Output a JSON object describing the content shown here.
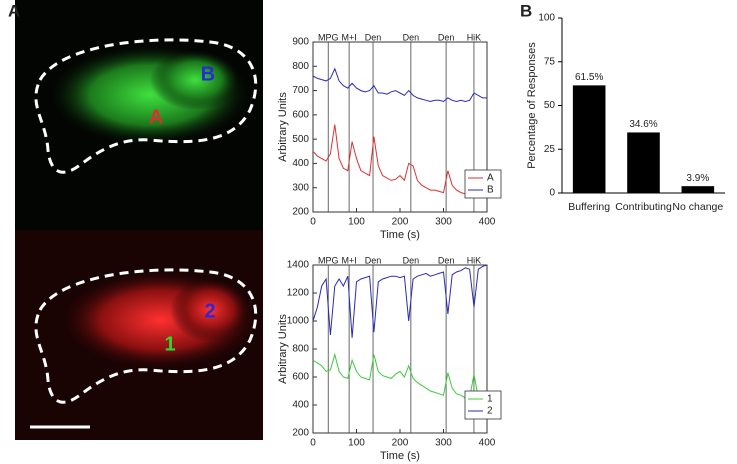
{
  "panel_labels": [
    "A",
    "B"
  ],
  "images": [
    {
      "labels": [
        "B",
        "A"
      ]
    },
    {
      "labels": [
        "2",
        "1"
      ]
    }
  ],
  "chart_data": [
    {
      "type": "line",
      "ylabel": "Arbitrary Units",
      "xlabel": "Time (s)",
      "xlim": [
        0,
        400
      ],
      "xticks": [
        0,
        100,
        200,
        300,
        400
      ],
      "ylim": [
        200,
        900
      ],
      "yticks": [
        200,
        300,
        400,
        500,
        600,
        700,
        800,
        900
      ],
      "events": [
        {
          "x": 35,
          "label": "MPG"
        },
        {
          "x": 83,
          "label": "M+I"
        },
        {
          "x": 138,
          "label": "Den"
        },
        {
          "x": 225,
          "label": "Den"
        },
        {
          "x": 306,
          "label": "Den"
        },
        {
          "x": 370,
          "label": "HiK"
        }
      ],
      "x": [
        0,
        10,
        20,
        30,
        40,
        50,
        60,
        70,
        80,
        90,
        100,
        110,
        120,
        130,
        140,
        150,
        160,
        170,
        180,
        190,
        200,
        210,
        220,
        230,
        240,
        250,
        260,
        270,
        280,
        290,
        300,
        310,
        320,
        330,
        340,
        350,
        360,
        370,
        380,
        390,
        400
      ],
      "series": [
        {
          "name": "A",
          "color": "#e03030",
          "values": [
            450,
            430,
            420,
            410,
            440,
            560,
            420,
            380,
            370,
            490,
            420,
            370,
            360,
            350,
            510,
            390,
            350,
            340,
            330,
            335,
            350,
            330,
            400,
            390,
            330,
            310,
            300,
            290,
            290,
            285,
            280,
            370,
            310,
            290,
            280,
            275,
            280,
            340,
            290,
            270,
            265
          ]
        },
        {
          "name": "B",
          "color": "#2a2ab8",
          "values": [
            760,
            750,
            745,
            740,
            750,
            790,
            740,
            720,
            710,
            730,
            710,
            700,
            695,
            700,
            720,
            690,
            690,
            685,
            695,
            700,
            690,
            680,
            700,
            680,
            670,
            665,
            660,
            655,
            660,
            660,
            655,
            670,
            660,
            655,
            660,
            655,
            660,
            690,
            680,
            670,
            670
          ]
        }
      ]
    },
    {
      "type": "line",
      "ylabel": "Arbitrary Units",
      "xlabel": "Time (s)",
      "xlim": [
        0,
        400
      ],
      "xticks": [
        0,
        100,
        200,
        300,
        400
      ],
      "ylim": [
        200,
        1400
      ],
      "yticks": [
        200,
        400,
        600,
        800,
        1000,
        1200,
        1400
      ],
      "events": [
        {
          "x": 35,
          "label": "MPG"
        },
        {
          "x": 83,
          "label": "M+I"
        },
        {
          "x": 138,
          "label": "Den"
        },
        {
          "x": 225,
          "label": "Den"
        },
        {
          "x": 306,
          "label": "Den"
        },
        {
          "x": 370,
          "label": "HiK"
        }
      ],
      "x": [
        0,
        10,
        20,
        30,
        40,
        50,
        60,
        70,
        80,
        90,
        100,
        110,
        120,
        130,
        140,
        150,
        160,
        170,
        180,
        190,
        200,
        210,
        220,
        230,
        240,
        250,
        260,
        270,
        280,
        290,
        300,
        310,
        320,
        330,
        340,
        350,
        360,
        370,
        380,
        390,
        400
      ],
      "series": [
        {
          "name": "1",
          "color": "#3ccc3c",
          "values": [
            720,
            700,
            680,
            640,
            650,
            760,
            640,
            600,
            590,
            720,
            640,
            600,
            590,
            580,
            760,
            640,
            610,
            600,
            590,
            620,
            640,
            600,
            680,
            590,
            560,
            540,
            520,
            500,
            490,
            480,
            470,
            630,
            520,
            480,
            470,
            450,
            450,
            620,
            450,
            430,
            420
          ]
        },
        {
          "name": "2",
          "color": "#2a2ab8",
          "values": [
            1000,
            1100,
            1250,
            1300,
            900,
            1250,
            1300,
            1250,
            1320,
            880,
            1280,
            1300,
            1310,
            1320,
            920,
            1280,
            1300,
            1310,
            1320,
            1320,
            1310,
            1320,
            1000,
            1300,
            1320,
            1330,
            1340,
            1320,
            1330,
            1340,
            1350,
            1050,
            1330,
            1350,
            1360,
            1380,
            1370,
            1100,
            1370,
            1390,
            1400
          ]
        }
      ]
    },
    {
      "type": "bar",
      "ylabel": "Percentage of Responses",
      "categories": [
        "Buffering",
        "Contributing",
        "No change"
      ],
      "values": [
        61.5,
        34.6,
        3.9
      ],
      "value_labels": [
        "61.5%",
        "34.6%",
        "3.9%"
      ],
      "color": "#000000",
      "ylim": [
        0,
        100
      ],
      "yticks": [
        0,
        25,
        50,
        75,
        100
      ]
    }
  ]
}
